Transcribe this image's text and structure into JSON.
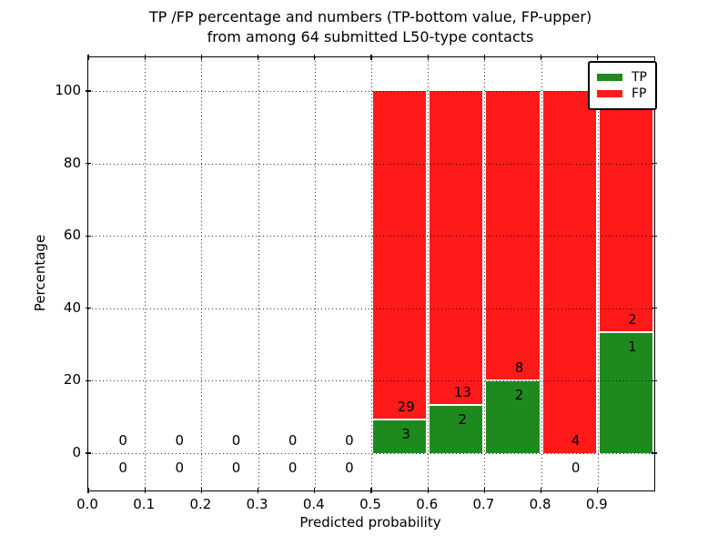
{
  "title": {
    "line1": "TP /FP percentage and numbers (TP-bottom value, FP-upper)",
    "line2": "from among 64 submitted L50-type contacts"
  },
  "axes": {
    "xlabel": "Predicted probability",
    "ylabel": "Percentage"
  },
  "legend": {
    "items": [
      {
        "label": "TP",
        "color": "#1e8a1e"
      },
      {
        "label": "FP",
        "color": "#ff1a1a"
      }
    ],
    "position": "upper right"
  },
  "chart_data": {
    "type": "bar",
    "stacked": true,
    "title": "TP /FP percentage and numbers (TP-bottom value, FP-upper) from among 64 submitted L50-type contacts",
    "xlabel": "Predicted probability",
    "ylabel": "Percentage",
    "xlim": [
      0.0,
      1.0
    ],
    "ylim": [
      -10,
      110
    ],
    "xticks": [
      "0.0",
      "0.1",
      "0.2",
      "0.3",
      "0.4",
      "0.5",
      "0.6",
      "0.7",
      "0.8",
      "0.9"
    ],
    "yticks": [
      0,
      20,
      40,
      60,
      80,
      100
    ],
    "grid": true,
    "legend_position": "upper right",
    "total_submitted": 64,
    "colors": {
      "tp": "#1e8a1e",
      "fp": "#ff1a1a",
      "separator": "#ffffff"
    },
    "bins": [
      {
        "x0": 0.0,
        "x1": 0.1,
        "tp_count": 0,
        "fp_count": 0,
        "tp_pct": 0,
        "fp_pct": 0
      },
      {
        "x0": 0.1,
        "x1": 0.2,
        "tp_count": 0,
        "fp_count": 0,
        "tp_pct": 0,
        "fp_pct": 0
      },
      {
        "x0": 0.2,
        "x1": 0.3,
        "tp_count": 0,
        "fp_count": 0,
        "tp_pct": 0,
        "fp_pct": 0
      },
      {
        "x0": 0.3,
        "x1": 0.4,
        "tp_count": 0,
        "fp_count": 0,
        "tp_pct": 0,
        "fp_pct": 0
      },
      {
        "x0": 0.4,
        "x1": 0.5,
        "tp_count": 0,
        "fp_count": 0,
        "tp_pct": 0,
        "fp_pct": 0
      },
      {
        "x0": 0.5,
        "x1": 0.6,
        "tp_count": 3,
        "fp_count": 29,
        "tp_pct": 9.375,
        "fp_pct": 90.625
      },
      {
        "x0": 0.6,
        "x1": 0.7,
        "tp_count": 2,
        "fp_count": 13,
        "tp_pct": 13.33,
        "fp_pct": 86.67
      },
      {
        "x0": 0.7,
        "x1": 0.8,
        "tp_count": 2,
        "fp_count": 8,
        "tp_pct": 20.0,
        "fp_pct": 80.0
      },
      {
        "x0": 0.8,
        "x1": 0.9,
        "tp_count": 0,
        "fp_count": 4,
        "tp_pct": 0.0,
        "fp_pct": 100.0
      },
      {
        "x0": 0.9,
        "x1": 1.0,
        "tp_count": 1,
        "fp_count": 2,
        "tp_pct": 33.33,
        "fp_pct": 66.67
      }
    ]
  }
}
